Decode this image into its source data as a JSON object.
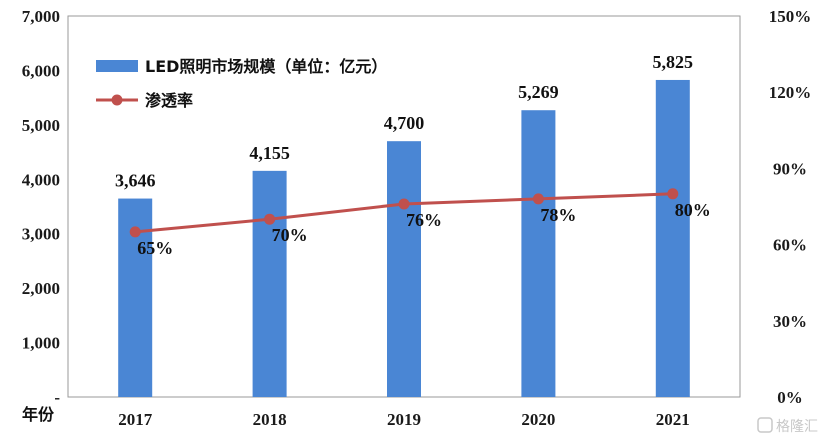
{
  "chart_data": {
    "type": "bar",
    "categories": [
      "2017",
      "2018",
      "2019",
      "2020",
      "2021"
    ],
    "series": [
      {
        "name": "LED照明市场规模（单位：亿元）",
        "kind": "bar",
        "axis": "left",
        "color": "#4a86d4",
        "values": [
          3646,
          4155,
          4700,
          5269,
          5825
        ],
        "labels": [
          "3,646",
          "4,155",
          "4,700",
          "5,269",
          "5,825"
        ]
      },
      {
        "name": "渗透率",
        "kind": "line",
        "axis": "right",
        "color": "#c0504d",
        "values": [
          65,
          70,
          76,
          78,
          80
        ],
        "labels": [
          "65%",
          "70%",
          "76%",
          "78%",
          "80%"
        ]
      }
    ],
    "xlabel": "年份",
    "ylim_left": [
      0,
      7000
    ],
    "ylim_right": [
      0,
      150
    ],
    "yticks_left": [
      "7,000",
      "6,000",
      "5,000",
      "4,000",
      "3,000",
      "2,000",
      "1,000",
      "-"
    ],
    "yticks_right": [
      "150%",
      "120%",
      "90%",
      "60%",
      "30%",
      "0%"
    ],
    "legend_position": "top-left",
    "grid": false
  },
  "watermark": "格隆汇"
}
